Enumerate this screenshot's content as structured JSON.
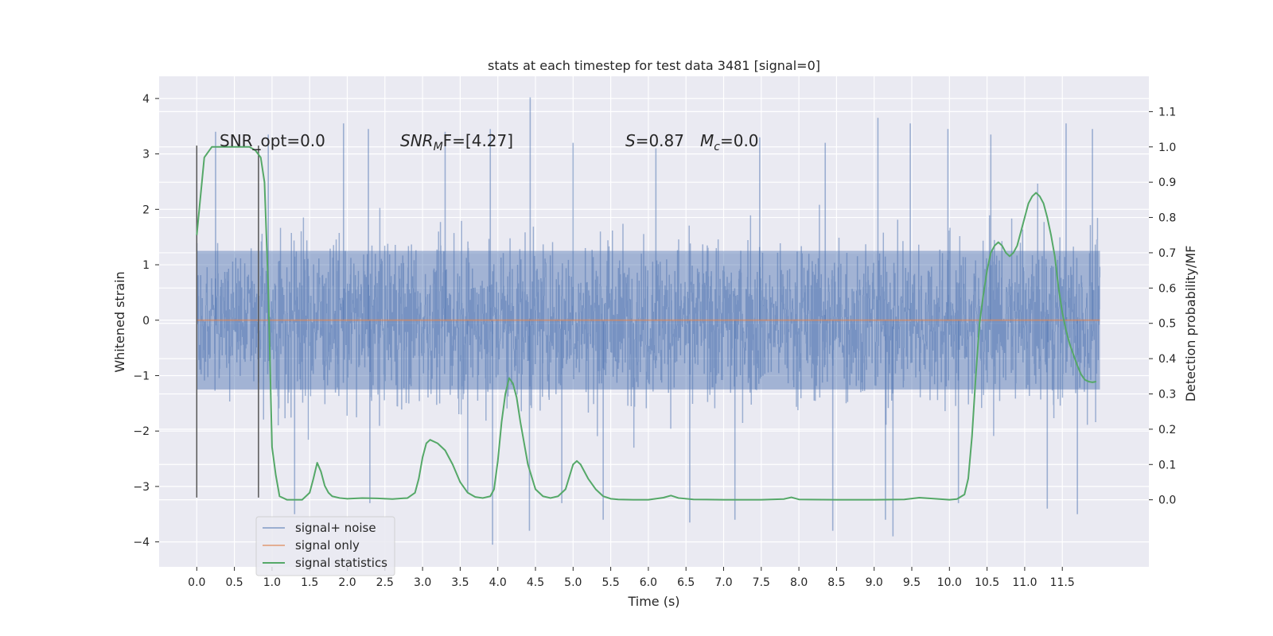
{
  "chart_data": {
    "type": "line",
    "title": "stats at each timestep for test data 3481 [signal=0]",
    "xlabel": "Time (s)",
    "ylabel": "Whitened strain",
    "y2label": "Detection probability/MF",
    "xlim": [
      -0.5,
      12.65
    ],
    "ylim": [
      -4.45,
      4.4
    ],
    "y2lim": [
      -0.19,
      1.2
    ],
    "xticks": [
      0.0,
      0.5,
      1.0,
      1.5,
      2.0,
      2.5,
      3.0,
      3.5,
      4.0,
      4.5,
      5.0,
      5.5,
      6.0,
      6.5,
      7.0,
      7.5,
      8.0,
      8.5,
      9.0,
      9.5,
      10.0,
      10.5,
      11.0,
      11.5
    ],
    "xtick_labels": [
      "0.0",
      "0.5",
      "1.0",
      "1.5",
      "2.0",
      "2.5",
      "3.0",
      "3.5",
      "4.0",
      "4.5",
      "5.0",
      "5.5",
      "6.0",
      "6.5",
      "7.0",
      "7.5",
      "8.0",
      "8.5",
      "9.0",
      "9.5",
      "10.0",
      "10.5",
      "11.0",
      "11.5"
    ],
    "yticks": [
      -4,
      -3,
      -2,
      -1,
      0,
      1,
      2,
      3,
      4
    ],
    "ytick_labels": [
      "−4",
      "−3",
      "−2",
      "−1",
      "0",
      "1",
      "2",
      "3",
      "4"
    ],
    "y2ticks": [
      0.0,
      0.1,
      0.2,
      0.3,
      0.4,
      0.5,
      0.6,
      0.7,
      0.8,
      0.9,
      1.0,
      1.1
    ],
    "y2tick_labels": [
      "0.0",
      "0.1",
      "0.2",
      "0.3",
      "0.4",
      "0.5",
      "0.6",
      "0.7",
      "0.8",
      "0.9",
      "1.0",
      "1.1"
    ],
    "grid": true,
    "legend_position": "lower-left",
    "annotations": {
      "snr_opt": "SNR_opt=0.0",
      "snr_mf_main": "SNR",
      "snr_mf_sub": "M",
      "snr_mf_rest": "F=[4.27]",
      "s_main": "S",
      "s_rest": "=0.87",
      "mc_main": "M",
      "mc_sub": "c",
      "mc_rest": "=0.0"
    },
    "window_markers": [
      0.0,
      0.82
    ],
    "window_marker_range": [
      -3.2,
      3.15
    ],
    "noise": {
      "t_start": 0.0,
      "t_end": 12.0,
      "dense_band": [
        -1.25,
        1.25
      ],
      "typical_range": [
        -2.1,
        2.1
      ],
      "upper_peaks": [
        [
          0.25,
          3.4
        ],
        [
          0.95,
          3.35
        ],
        [
          1.95,
          3.55
        ],
        [
          2.28,
          3.45
        ],
        [
          3.3,
          3.4
        ],
        [
          3.9,
          3.45
        ],
        [
          4.43,
          4.02
        ],
        [
          5.0,
          3.2
        ],
        [
          6.1,
          3.1
        ],
        [
          7.48,
          3.3
        ],
        [
          8.35,
          3.2
        ],
        [
          9.05,
          3.65
        ],
        [
          9.48,
          3.55
        ],
        [
          9.98,
          3.45
        ],
        [
          10.55,
          3.35
        ],
        [
          11.55,
          3.55
        ],
        [
          11.9,
          3.45
        ]
      ],
      "lower_peaks": [
        [
          1.3,
          -3.5
        ],
        [
          2.3,
          -3.3
        ],
        [
          3.6,
          -3.1
        ],
        [
          3.93,
          -4.05
        ],
        [
          4.42,
          -3.8
        ],
        [
          4.85,
          -3.3
        ],
        [
          5.4,
          -3.6
        ],
        [
          6.55,
          -3.65
        ],
        [
          7.15,
          -3.6
        ],
        [
          8.45,
          -3.8
        ],
        [
          9.15,
          -3.6
        ],
        [
          9.25,
          -3.9
        ],
        [
          10.12,
          -3.3
        ],
        [
          11.3,
          -3.4
        ],
        [
          11.7,
          -3.5
        ]
      ]
    },
    "series": [
      {
        "name": "signal+ noise",
        "color": "#4c72b0",
        "opacity": 0.5,
        "axis": "left",
        "kind": "noise"
      },
      {
        "name": "signal only",
        "color": "#dd8452",
        "opacity": 0.6,
        "axis": "left",
        "x": [
          0.0,
          12.0
        ],
        "y": [
          0.0,
          0.0
        ]
      },
      {
        "name": "signal statistics",
        "color": "#55a868",
        "axis": "right",
        "x": [
          0.0,
          0.1,
          0.2,
          0.3,
          0.4,
          0.5,
          0.6,
          0.7,
          0.78,
          0.85,
          0.9,
          0.95,
          1.0,
          1.05,
          1.1,
          1.2,
          1.3,
          1.4,
          1.5,
          1.55,
          1.6,
          1.65,
          1.7,
          1.75,
          1.8,
          1.9,
          2.0,
          2.2,
          2.4,
          2.6,
          2.8,
          2.9,
          2.95,
          3.0,
          3.05,
          3.1,
          3.2,
          3.3,
          3.4,
          3.5,
          3.6,
          3.7,
          3.8,
          3.9,
          3.95,
          4.0,
          4.05,
          4.1,
          4.15,
          4.2,
          4.25,
          4.3,
          4.4,
          4.5,
          4.6,
          4.7,
          4.8,
          4.9,
          5.0,
          5.05,
          5.1,
          5.15,
          5.2,
          5.3,
          5.4,
          5.5,
          5.6,
          5.8,
          6.0,
          6.2,
          6.3,
          6.4,
          6.6,
          7.0,
          7.5,
          7.8,
          7.9,
          8.0,
          8.5,
          9.0,
          9.4,
          9.6,
          10.0,
          10.1,
          10.2,
          10.25,
          10.3,
          10.35,
          10.4,
          10.45,
          10.5,
          10.55,
          10.6,
          10.65,
          10.7,
          10.75,
          10.8,
          10.85,
          10.9,
          10.95,
          11.0,
          11.05,
          11.1,
          11.15,
          11.2,
          11.25,
          11.3,
          11.35,
          11.4,
          11.45,
          11.5,
          11.55,
          11.6,
          11.65,
          11.7,
          11.75,
          11.8,
          11.85,
          11.9,
          11.95
        ],
        "y": [
          0.75,
          0.97,
          1.0,
          1.0,
          1.0,
          1.0,
          1.0,
          1.0,
          0.99,
          0.97,
          0.9,
          0.6,
          0.15,
          0.07,
          0.01,
          0.0,
          0.0,
          0.0,
          0.02,
          0.06,
          0.105,
          0.08,
          0.04,
          0.02,
          0.01,
          0.005,
          0.003,
          0.005,
          0.004,
          0.002,
          0.005,
          0.02,
          0.06,
          0.12,
          0.16,
          0.17,
          0.16,
          0.14,
          0.1,
          0.05,
          0.02,
          0.008,
          0.005,
          0.01,
          0.03,
          0.11,
          0.22,
          0.3,
          0.345,
          0.33,
          0.29,
          0.22,
          0.1,
          0.03,
          0.01,
          0.005,
          0.01,
          0.03,
          0.1,
          0.11,
          0.1,
          0.08,
          0.06,
          0.03,
          0.01,
          0.003,
          0.001,
          0.0,
          0.0,
          0.006,
          0.012,
          0.005,
          0.001,
          0.0,
          0.0,
          0.002,
          0.007,
          0.001,
          0.0,
          0.0,
          0.001,
          0.006,
          0.0,
          0.002,
          0.015,
          0.06,
          0.18,
          0.35,
          0.5,
          0.58,
          0.65,
          0.7,
          0.72,
          0.73,
          0.72,
          0.7,
          0.69,
          0.7,
          0.72,
          0.76,
          0.8,
          0.84,
          0.86,
          0.87,
          0.86,
          0.84,
          0.8,
          0.75,
          0.69,
          0.6,
          0.53,
          0.48,
          0.44,
          0.41,
          0.38,
          0.355,
          0.34,
          0.335,
          0.333,
          0.335
        ]
      }
    ]
  }
}
